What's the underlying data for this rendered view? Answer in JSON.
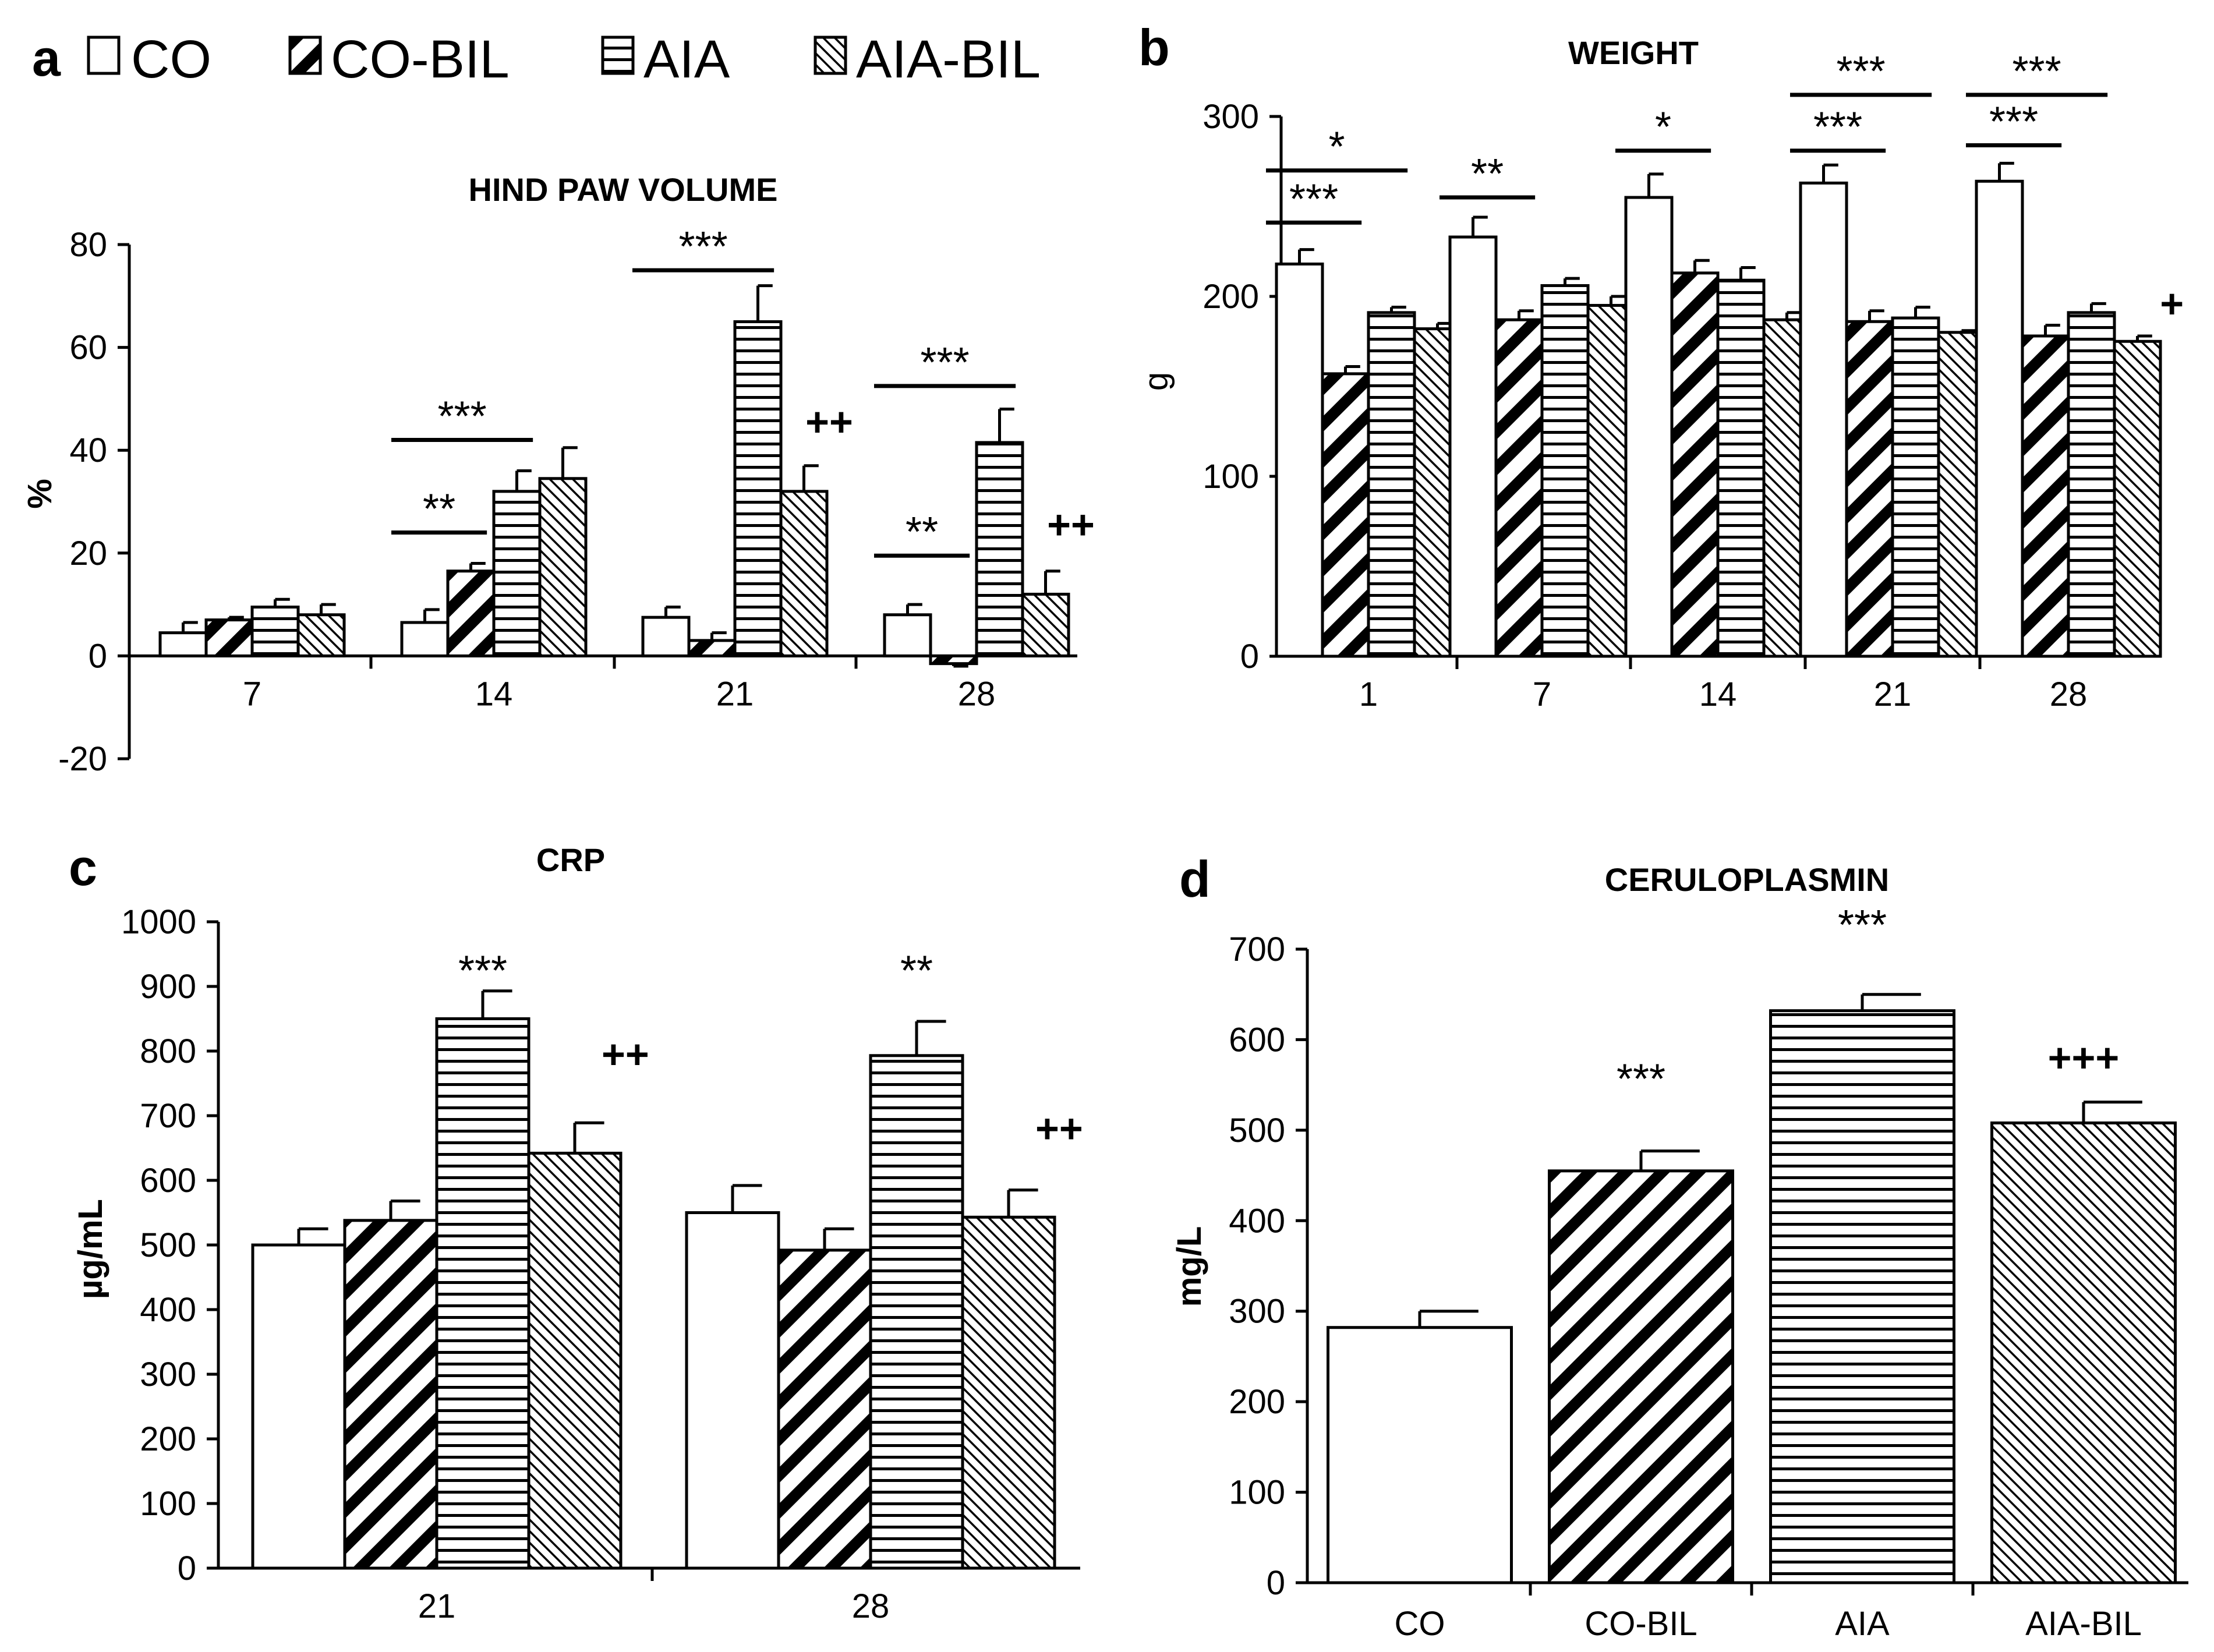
{
  "figure_labels": {
    "a": "a",
    "b": "b",
    "c": "c",
    "d": "d"
  },
  "colors": {
    "stroke": "#000000",
    "background": "#ffffff"
  },
  "legend": [
    {
      "name": "CO",
      "pattern": "none"
    },
    {
      "name": "CO-BIL",
      "pattern": "diag-thick"
    },
    {
      "name": "AIA",
      "pattern": "horizontal"
    },
    {
      "name": "AIA-BIL",
      "pattern": "diag-thin"
    }
  ],
  "chart_data": [
    {
      "id": "a",
      "type": "bar",
      "title": "HIND PAW VOLUME",
      "ylabel": "%",
      "xlabel": "",
      "ylim": [
        -20,
        80
      ],
      "yticks": [
        -20,
        0,
        20,
        40,
        60,
        80
      ],
      "categories": [
        "7",
        "14",
        "21",
        "28"
      ],
      "series": [
        {
          "name": "CO",
          "values": [
            4.5,
            6.5,
            7.5,
            8
          ],
          "errors": [
            2,
            2.5,
            2,
            2
          ]
        },
        {
          "name": "CO-BIL",
          "values": [
            7,
            16.5,
            3,
            -1.5
          ],
          "errors": [
            0.5,
            1.5,
            1.5,
            0.5
          ]
        },
        {
          "name": "AIA",
          "values": [
            9.5,
            32,
            65,
            41.5
          ],
          "errors": [
            1.5,
            4,
            7,
            6.5
          ]
        },
        {
          "name": "AIA-BIL",
          "values": [
            8,
            34.5,
            32,
            12
          ],
          "errors": [
            2,
            6,
            5,
            4.5
          ]
        }
      ],
      "significance": [
        {
          "text": "**",
          "group": 1,
          "from": 0,
          "to": 1,
          "y": 24
        },
        {
          "text": "***",
          "group": 1,
          "from": 0,
          "to": 2,
          "y": 42
        },
        {
          "text": "***",
          "group": 2,
          "from": 0,
          "to": 2,
          "y": 75
        },
        {
          "text": "**",
          "group": 3,
          "from": 0,
          "to": 1,
          "y": 19.5
        },
        {
          "text": "***",
          "group": 3,
          "from": 0,
          "to": 2,
          "y": 52.5
        }
      ],
      "plus": [
        {
          "text": "++",
          "group": 2,
          "series": 3,
          "y": 45.5
        },
        {
          "text": "++",
          "group": 3,
          "series": 3,
          "y": 25.5
        }
      ]
    },
    {
      "id": "b",
      "type": "bar",
      "title": "WEIGHT",
      "ylabel": "g",
      "xlabel": "",
      "ylim": [
        0,
        300
      ],
      "yticks": [
        0,
        100,
        200,
        300
      ],
      "categories": [
        "1",
        "7",
        "14",
        "21",
        "28"
      ],
      "series": [
        {
          "name": "CO",
          "values": [
            218,
            233,
            255,
            263,
            264
          ],
          "errors": [
            8,
            11,
            13,
            10,
            10
          ]
        },
        {
          "name": "CO-BIL",
          "values": [
            157,
            187,
            213,
            186,
            178
          ],
          "errors": [
            4,
            5,
            7,
            6,
            6
          ]
        },
        {
          "name": "AIA",
          "values": [
            191,
            206,
            209,
            188,
            191
          ],
          "errors": [
            3,
            4,
            7,
            6,
            5
          ]
        },
        {
          "name": "AIA-BIL",
          "values": [
            182,
            195,
            187,
            180,
            175
          ],
          "errors": [
            3,
            5,
            4,
            1,
            3
          ]
        }
      ],
      "significance": [
        {
          "text": "***",
          "group": 0,
          "from": 0,
          "to": 1,
          "y": 241
        },
        {
          "text": "*",
          "group": 0,
          "from": 0,
          "to": 2,
          "y": 270
        },
        {
          "text": "**",
          "group": 1,
          "from": 0,
          "to": 1,
          "y": 255
        },
        {
          "text": "*",
          "group": 2,
          "from": 0,
          "to": 1,
          "y": 281
        },
        {
          "text": "***",
          "group": 3,
          "from": 0,
          "to": 1,
          "y": 281
        },
        {
          "text": "***",
          "group": 3,
          "from": 0,
          "to": 2,
          "y": 312
        },
        {
          "text": "***",
          "group": 4,
          "from": 0,
          "to": 1,
          "y": 284
        },
        {
          "text": "***",
          "group": 4,
          "from": 0,
          "to": 2,
          "y": 312
        }
      ],
      "plus": [
        {
          "text": "+",
          "group": 4,
          "series": 3,
          "y": 196
        }
      ]
    },
    {
      "id": "c",
      "type": "bar",
      "title": "CRP",
      "ylabel": "µg/mL",
      "xlabel": "",
      "ylim": [
        0,
        1000
      ],
      "yticks": [
        0,
        100,
        200,
        300,
        400,
        500,
        600,
        700,
        800,
        900,
        1000
      ],
      "categories": [
        "21",
        "28"
      ],
      "series": [
        {
          "name": "CO",
          "values": [
            500,
            550
          ],
          "errors": [
            25,
            42
          ]
        },
        {
          "name": "CO-BIL",
          "values": [
            538,
            492
          ],
          "errors": [
            30,
            33
          ]
        },
        {
          "name": "AIA",
          "values": [
            850,
            793
          ],
          "errors": [
            43,
            53
          ]
        },
        {
          "name": "AIA-BIL",
          "values": [
            642,
            543
          ],
          "errors": [
            47,
            42
          ]
        }
      ],
      "significance": [],
      "stars": [
        {
          "text": "***",
          "group": 0,
          "series": 2,
          "y": 922
        },
        {
          "text": "**",
          "group": 1,
          "series": 2,
          "y": 922
        }
      ],
      "plus": [
        {
          "text": "++",
          "group": 0,
          "series": 3,
          "y": 795
        },
        {
          "text": "++",
          "group": 1,
          "series": 3,
          "y": 680
        }
      ]
    },
    {
      "id": "d",
      "type": "bar",
      "title": "CERULOPLASMIN",
      "ylabel": "mg/L",
      "xlabel": "",
      "ylim": [
        0,
        700
      ],
      "yticks": [
        0,
        100,
        200,
        300,
        400,
        500,
        600,
        700
      ],
      "categories": [
        "CO",
        "CO-BIL",
        "AIA",
        "AIA-BIL"
      ],
      "values": [
        282,
        455,
        632,
        508
      ],
      "errors": [
        18,
        22,
        18,
        23
      ],
      "patterns": [
        "none",
        "diag-thick",
        "horizontal",
        "diag-thin"
      ],
      "stars": [
        {
          "text": "***",
          "index": 1,
          "y": 555
        },
        {
          "text": "***",
          "index": 2,
          "y": 725
        }
      ],
      "plus": [
        {
          "text": "+++",
          "index": 3,
          "y": 580
        }
      ]
    }
  ]
}
